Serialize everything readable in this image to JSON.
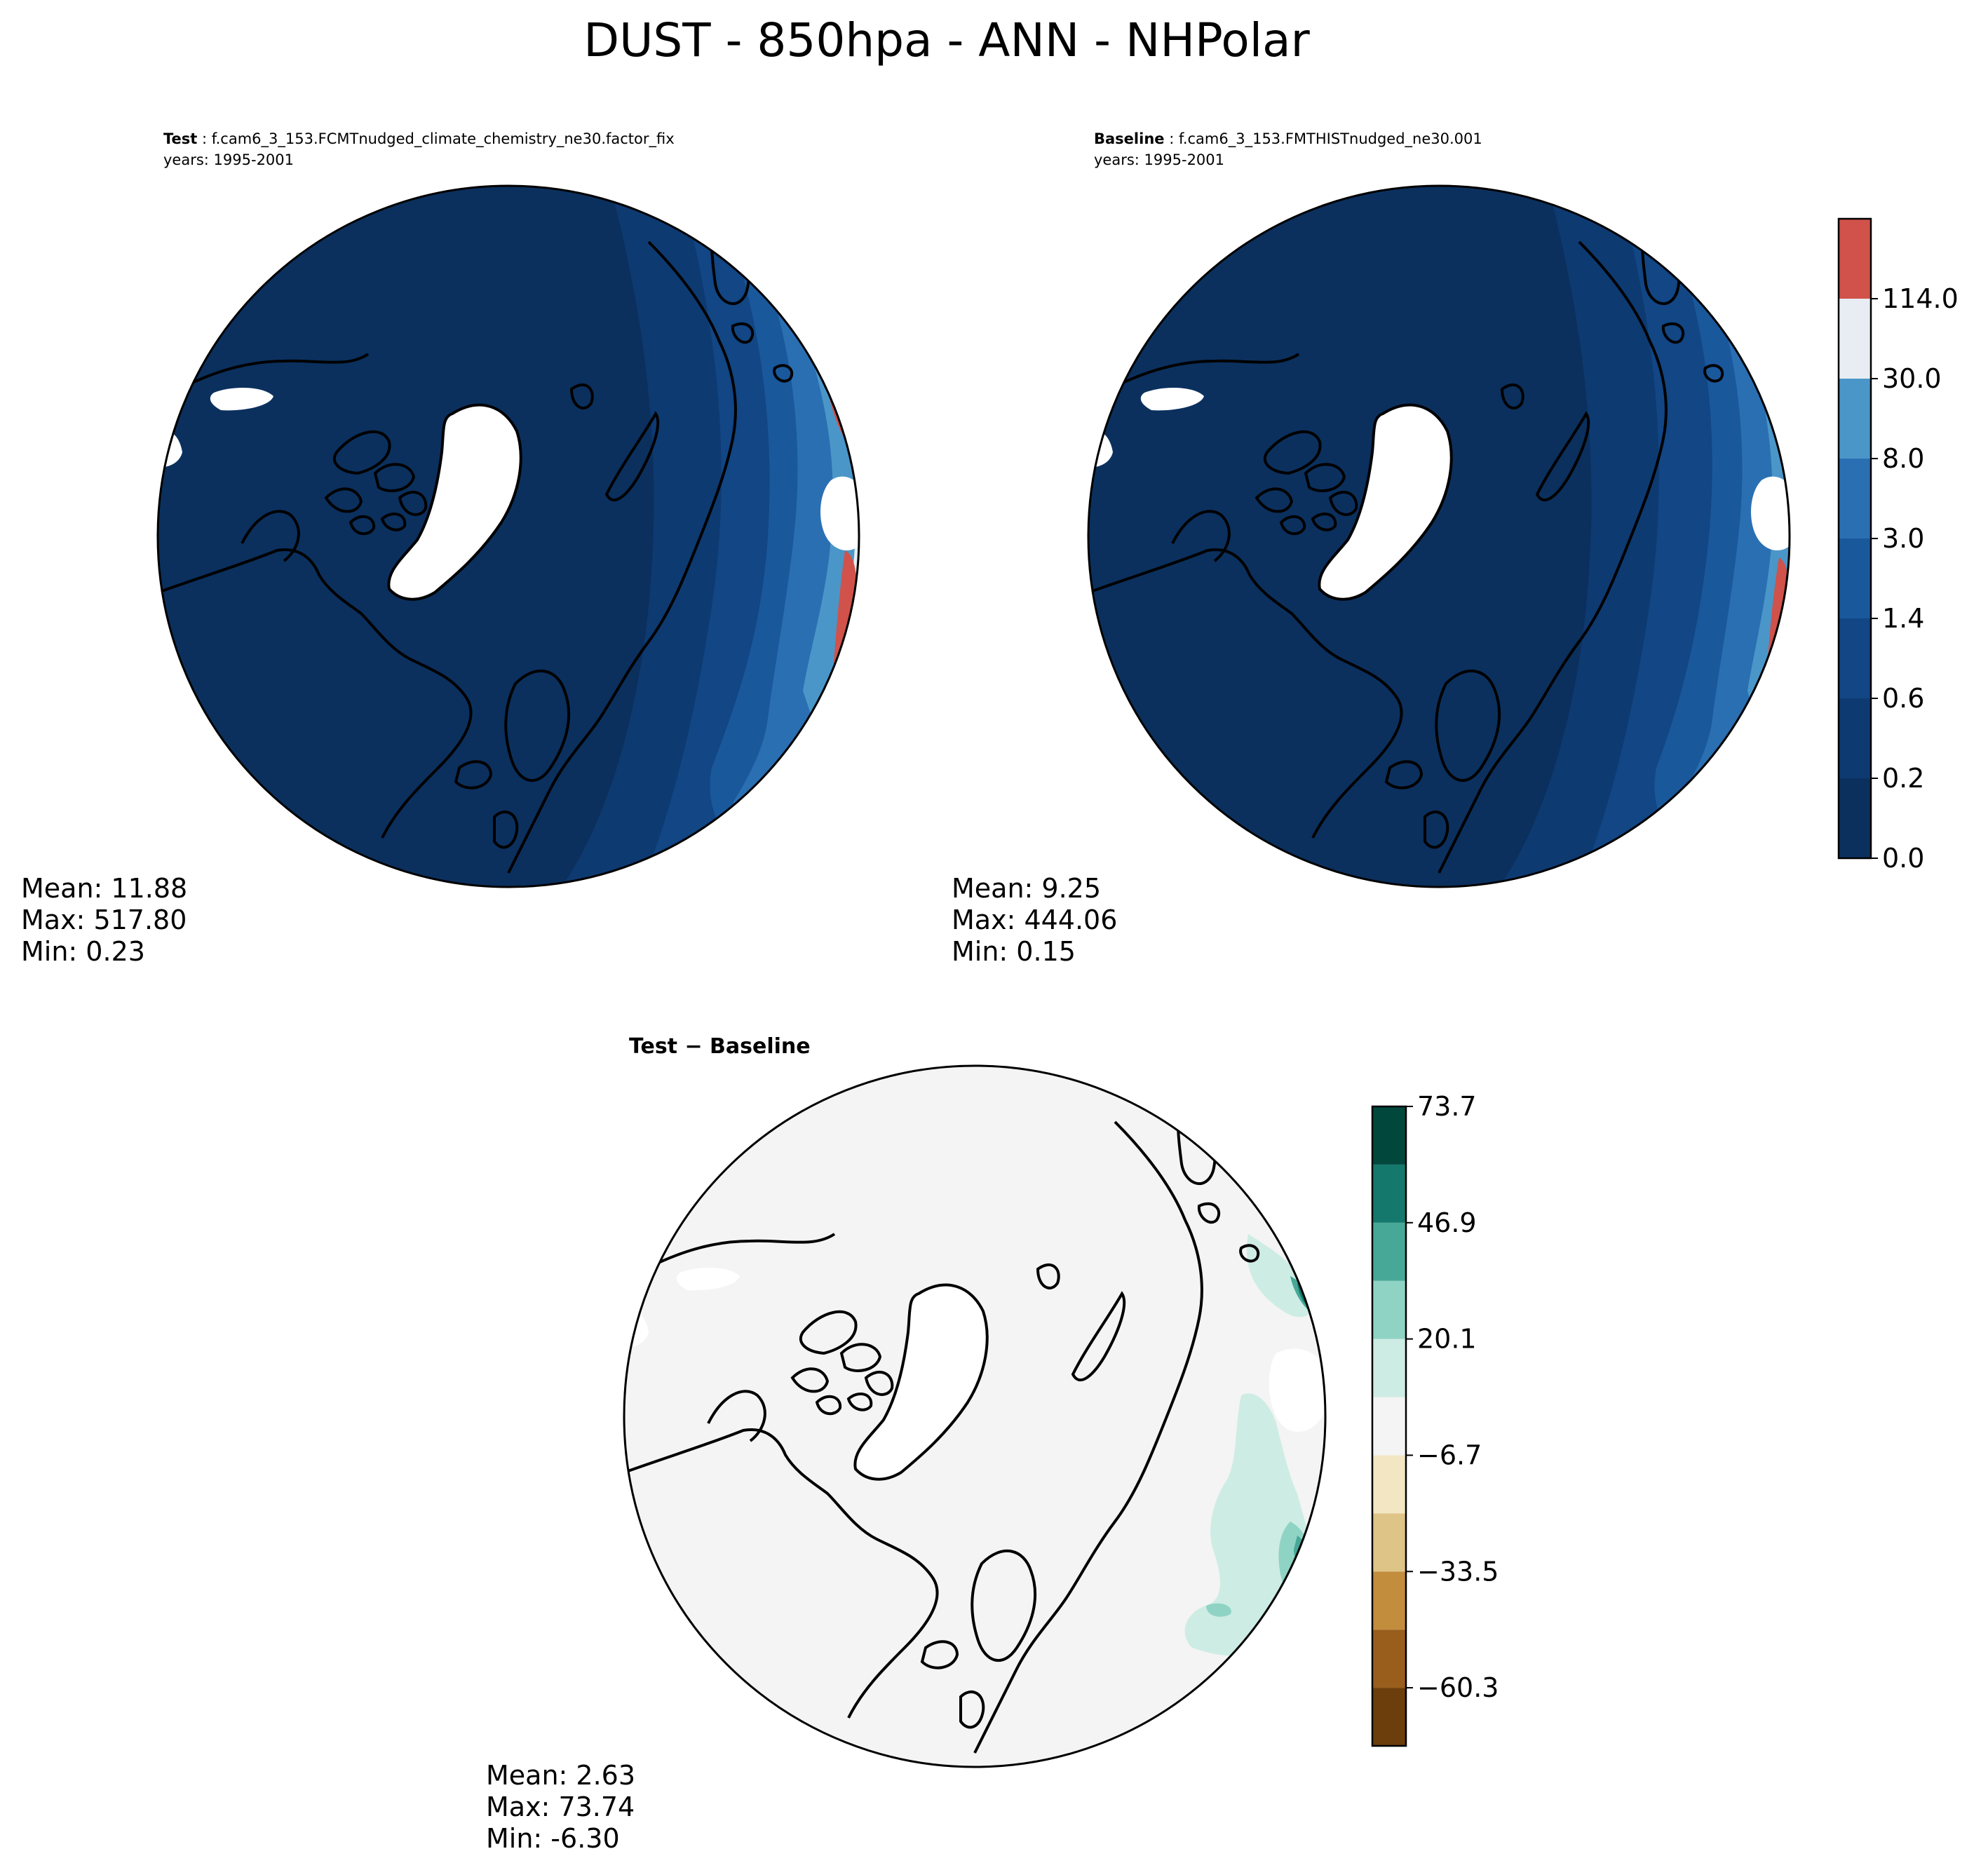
{
  "figure": {
    "title": "DUST - 850hpa - ANN - NHPolar"
  },
  "panels": {
    "test": {
      "label_bold": "Test",
      "label_case": "f.cam6_3_153.FCMTnudged_climate_chemistry_ne30.factor_fix",
      "years": "years: 1995-2001",
      "stats": {
        "mean": "Mean: 11.88",
        "max": "Max: 517.80",
        "min": "Min:  0.23"
      }
    },
    "baseline": {
      "label_bold": "Baseline",
      "label_case": "f.cam6_3_153.FMTHISTnudged_ne30.001",
      "years": "years: 1995-2001",
      "stats": {
        "mean": "Mean:  9.25",
        "max": "Max: 444.06",
        "min": "Min:  0.15"
      }
    },
    "diff": {
      "label": "Test − Baseline",
      "stats": {
        "mean": "Mean:  2.63",
        "max": "Max: 73.74",
        "min": "Min: -6.30"
      }
    }
  },
  "colorbar_main": {
    "ticks": [
      "0.0",
      "0.2",
      "0.6",
      "1.4",
      "3.0",
      "8.0",
      "30.0",
      "114.0"
    ],
    "colors": [
      "#0b305e",
      "#0e3a72",
      "#124684",
      "#1a589c",
      "#2a6fb2",
      "#4a96c8",
      "#e7edf3",
      "#d0524a"
    ]
  },
  "colorbar_diff": {
    "ticks": [
      "−60.3",
      "−33.5",
      "−6.7",
      "20.1",
      "46.9",
      "73.7"
    ],
    "colors": [
      "#6b3e0c",
      "#9a5e1c",
      "#c38d3e",
      "#dfc487",
      "#f3e6c3",
      "#f3f4f3",
      "#cdece4",
      "#8fd3c4",
      "#47a898",
      "#15786c",
      "#01473c"
    ]
  },
  "map_colors": {
    "ocean_base": "#0b305e",
    "missing": "#ffffff",
    "diff_base": "#f3f4f3",
    "coast": "#000000"
  }
}
